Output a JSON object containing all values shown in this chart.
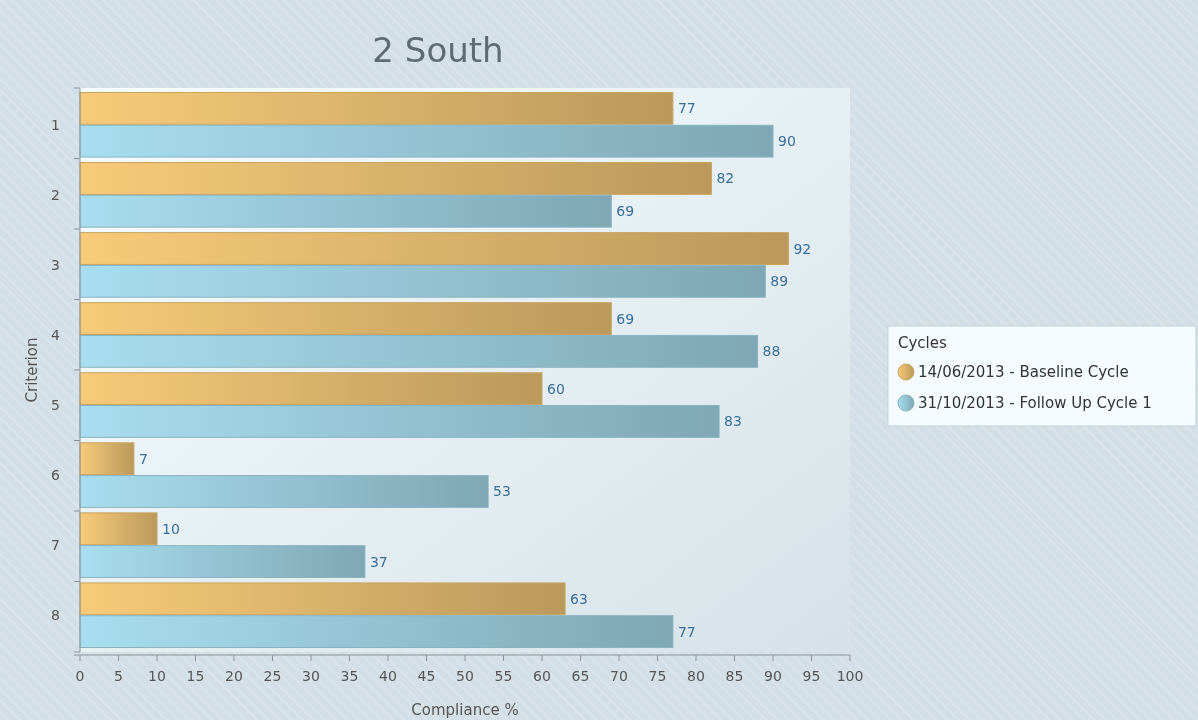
{
  "chart_data": {
    "type": "bar",
    "orientation": "horizontal",
    "title": "2 South",
    "xlabel": "Compliance %",
    "ylabel": "Criterion",
    "legend_title": "Cycles",
    "legend": "right",
    "data_labels": true,
    "categories": [
      "1",
      "2",
      "3",
      "4",
      "5",
      "6",
      "7",
      "8"
    ],
    "series": [
      {
        "name": "14/06/2013 - Baseline Cycle",
        "color": "#c8a462",
        "values": [
          77,
          82,
          92,
          69,
          60,
          7,
          10,
          63
        ]
      },
      {
        "name": "31/10/2013 - Follow Up Cycle 1",
        "color": "#88b3c1",
        "values": [
          90,
          69,
          89,
          88,
          83,
          53,
          37,
          77
        ]
      }
    ],
    "xlim": [
      0,
      100
    ],
    "xticks": [
      0,
      5,
      10,
      15,
      20,
      25,
      30,
      35,
      40,
      45,
      50,
      55,
      60,
      65,
      70,
      75,
      80,
      85,
      90,
      95,
      100
    ]
  }
}
